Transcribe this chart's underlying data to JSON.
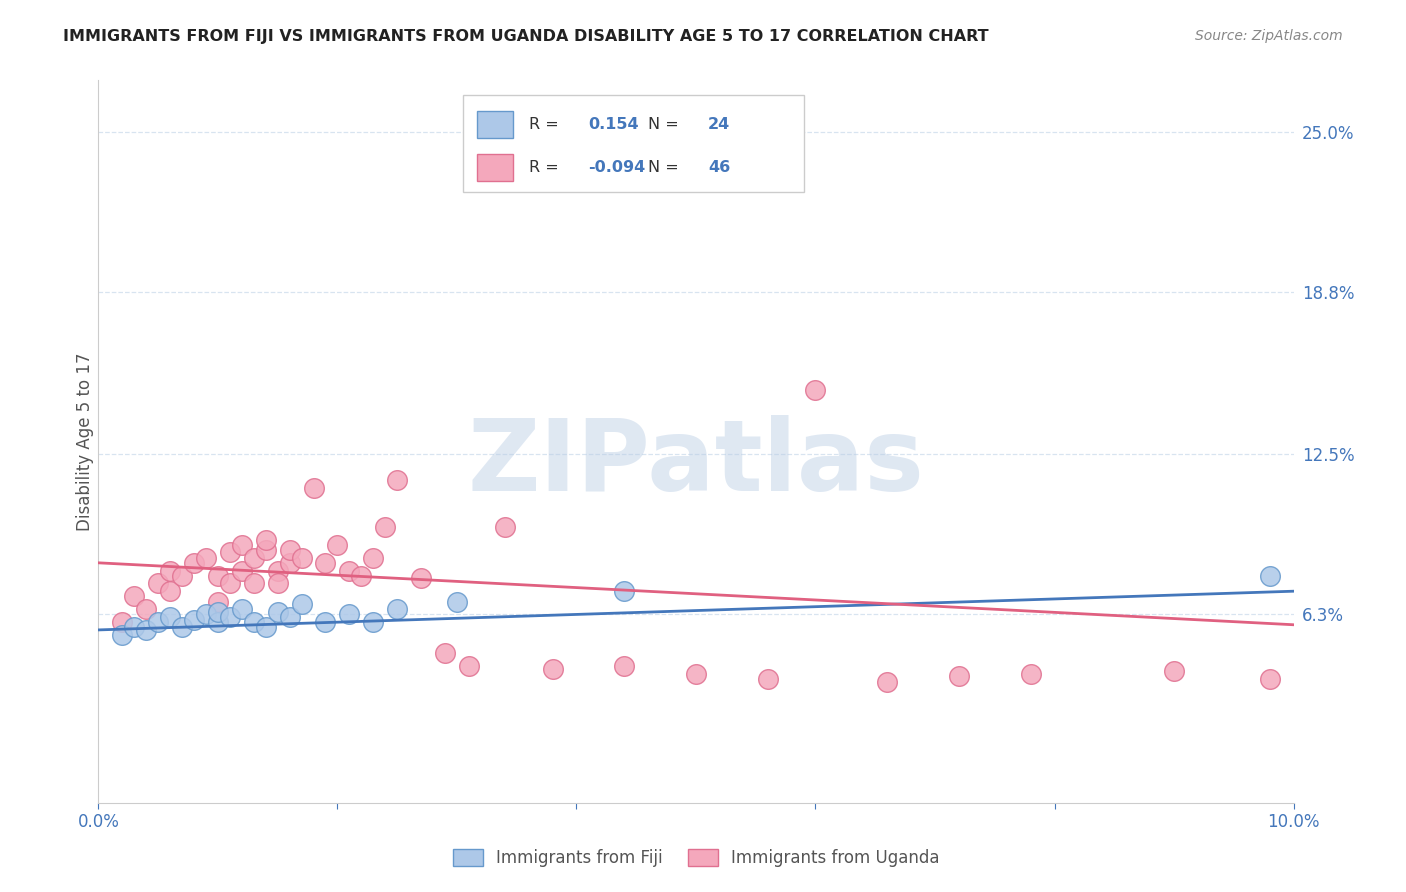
{
  "title": "IMMIGRANTS FROM FIJI VS IMMIGRANTS FROM UGANDA DISABILITY AGE 5 TO 17 CORRELATION CHART",
  "source": "Source: ZipAtlas.com",
  "ylabel": "Disability Age 5 to 17",
  "ytick_labels": [
    "6.3%",
    "12.5%",
    "18.8%",
    "25.0%"
  ],
  "ytick_values": [
    0.063,
    0.125,
    0.188,
    0.25
  ],
  "xlim": [
    0.0,
    0.1
  ],
  "ylim": [
    -0.01,
    0.27
  ],
  "fiji_R": 0.154,
  "fiji_N": 24,
  "uganda_R": -0.094,
  "uganda_N": 46,
  "fiji_color": "#adc8e8",
  "uganda_color": "#f4a8bc",
  "fiji_edge_color": "#6699cc",
  "uganda_edge_color": "#e07090",
  "fiji_line_color": "#4477bb",
  "uganda_line_color": "#e06080",
  "legend_text_color": "#4477bb",
  "legend_label_fiji": "Immigrants from Fiji",
  "legend_label_uganda": "Immigrants from Uganda",
  "watermark": "ZIPatlas",
  "watermark_zip_color": "#b8cce4",
  "watermark_atlas_color": "#c8a8b8",
  "axis_label_color": "#4477bb",
  "title_color": "#222222",
  "source_color": "#888888",
  "grid_color": "#d8e4f0",
  "spine_color": "#cccccc",
  "background_color": "#ffffff",
  "fiji_points_x": [
    0.002,
    0.003,
    0.004,
    0.005,
    0.006,
    0.007,
    0.008,
    0.009,
    0.01,
    0.01,
    0.011,
    0.012,
    0.013,
    0.014,
    0.015,
    0.016,
    0.017,
    0.019,
    0.021,
    0.023,
    0.025,
    0.03,
    0.044,
    0.098
  ],
  "fiji_points_y": [
    0.055,
    0.058,
    0.057,
    0.06,
    0.062,
    0.058,
    0.061,
    0.063,
    0.06,
    0.064,
    0.062,
    0.065,
    0.06,
    0.058,
    0.064,
    0.062,
    0.067,
    0.06,
    0.063,
    0.06,
    0.065,
    0.068,
    0.072,
    0.078
  ],
  "uganda_points_x": [
    0.002,
    0.003,
    0.004,
    0.005,
    0.006,
    0.006,
    0.007,
    0.008,
    0.009,
    0.01,
    0.01,
    0.011,
    0.011,
    0.012,
    0.012,
    0.013,
    0.013,
    0.014,
    0.014,
    0.015,
    0.015,
    0.016,
    0.016,
    0.017,
    0.018,
    0.019,
    0.02,
    0.021,
    0.022,
    0.023,
    0.024,
    0.025,
    0.027,
    0.029,
    0.031,
    0.034,
    0.038,
    0.044,
    0.05,
    0.056,
    0.06,
    0.066,
    0.072,
    0.078,
    0.09,
    0.098
  ],
  "uganda_points_y": [
    0.06,
    0.07,
    0.065,
    0.075,
    0.072,
    0.08,
    0.078,
    0.083,
    0.085,
    0.078,
    0.068,
    0.087,
    0.075,
    0.09,
    0.08,
    0.085,
    0.075,
    0.088,
    0.092,
    0.08,
    0.075,
    0.083,
    0.088,
    0.085,
    0.112,
    0.083,
    0.09,
    0.08,
    0.078,
    0.085,
    0.097,
    0.115,
    0.077,
    0.048,
    0.043,
    0.097,
    0.042,
    0.043,
    0.04,
    0.038,
    0.15,
    0.037,
    0.039,
    0.04,
    0.041,
    0.038
  ],
  "fiji_trend_x": [
    0.0,
    0.1
  ],
  "fiji_trend_y": [
    0.057,
    0.072
  ],
  "uganda_trend_x": [
    0.0,
    0.1
  ],
  "uganda_trend_y": [
    0.083,
    0.059
  ]
}
